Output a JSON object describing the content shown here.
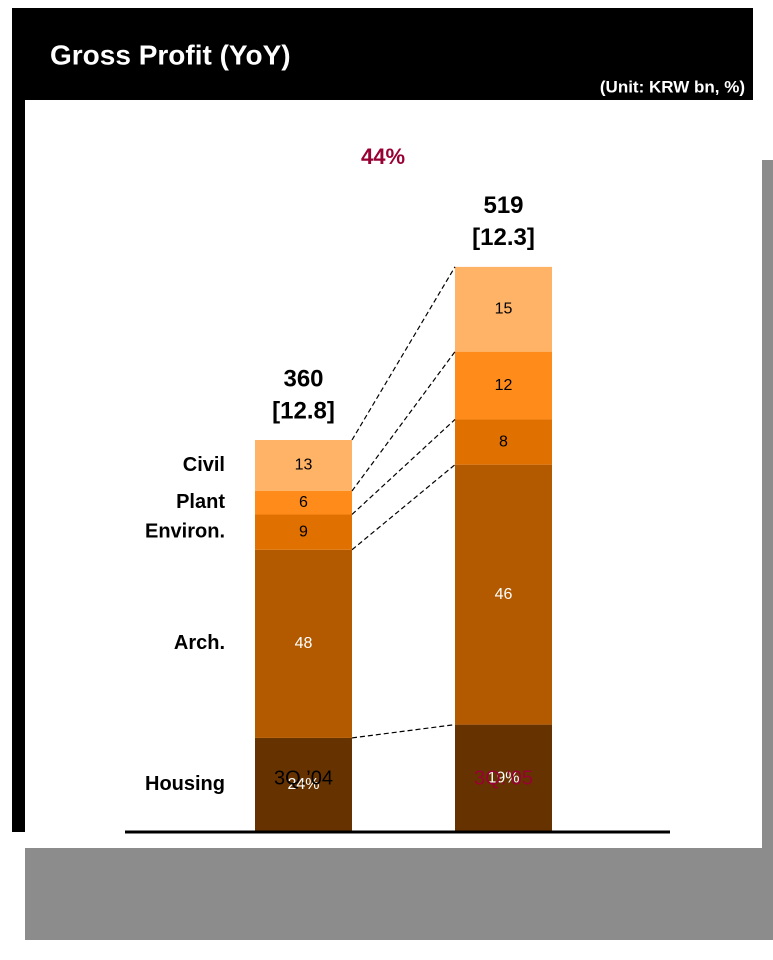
{
  "chart_data": {
    "type": "bar",
    "stacked": true,
    "title": "Gross Profit (YoY)",
    "subtitle": "(Unit: KRW bn, %)",
    "annotation": "44%",
    "categories": [
      "3Q.’04",
      "3Q.’05"
    ],
    "category_colors": [
      "#000000",
      "#990033"
    ],
    "totals": {
      "values": [
        360,
        519
      ]
    },
    "margins": {
      "values": [
        12.8,
        12.3
      ],
      "value_labels": [
        "[12.8]",
        "[12.3]"
      ]
    },
    "series": [
      {
        "name": "Housing",
        "color": "#663300",
        "label_color": "#ffffff",
        "values": [
          24,
          19
        ],
        "value_labels": [
          "24%",
          "19%"
        ]
      },
      {
        "name": "Arch.",
        "color": "#B35900",
        "label_color": "#ffffff",
        "values": [
          48,
          46
        ]
      },
      {
        "name": "Environ.",
        "color": "#E07000",
        "label_color": "#000000",
        "values": [
          9,
          8
        ]
      },
      {
        "name": "Plant",
        "color": "#FF8C1A",
        "label_color": "#000000",
        "values": [
          6,
          12
        ]
      },
      {
        "name": "Civil",
        "color": "#FFB366",
        "label_color": "#000000",
        "values": [
          13,
          15
        ]
      }
    ]
  }
}
